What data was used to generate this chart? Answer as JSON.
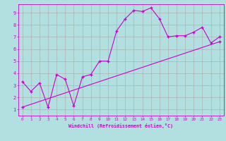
{
  "xlabel": "Windchill (Refroidissement éolien,°C)",
  "background_color": "#b2e0e0",
  "grid_color": "#aaaaaa",
  "line_color": "#cc00cc",
  "xlim": [
    -0.5,
    23.5
  ],
  "ylim": [
    0.5,
    9.7
  ],
  "xticks": [
    0,
    1,
    2,
    3,
    4,
    5,
    6,
    7,
    8,
    9,
    10,
    11,
    12,
    13,
    14,
    15,
    16,
    17,
    18,
    19,
    20,
    21,
    22,
    23
  ],
  "yticks": [
    1,
    2,
    3,
    4,
    5,
    6,
    7,
    8,
    9
  ],
  "line1_x": [
    0,
    1,
    2,
    3,
    4,
    5,
    6,
    7,
    8,
    9,
    10,
    11,
    12,
    13,
    14,
    15,
    16,
    17,
    18,
    19,
    20,
    21,
    22,
    23
  ],
  "line1_y": [
    3.3,
    2.5,
    3.2,
    1.2,
    3.9,
    3.5,
    1.3,
    3.7,
    3.9,
    5.0,
    5.0,
    7.5,
    8.5,
    9.2,
    9.1,
    9.4,
    8.5,
    7.0,
    7.1,
    7.1,
    7.4,
    7.8,
    6.5,
    7.0
  ],
  "line2_x": [
    0,
    23
  ],
  "line2_y": [
    1.2,
    6.6
  ],
  "marker": "+"
}
